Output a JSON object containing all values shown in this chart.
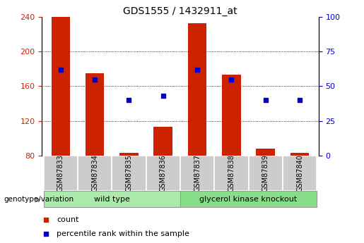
{
  "title": "GDS1555 / 1432911_at",
  "samples": [
    "GSM87833",
    "GSM87834",
    "GSM87835",
    "GSM87836",
    "GSM87837",
    "GSM87838",
    "GSM87839",
    "GSM87840"
  ],
  "counts": [
    240,
    175,
    83,
    113,
    233,
    173,
    88,
    83
  ],
  "percentiles": [
    62,
    55,
    40,
    43,
    62,
    55,
    40,
    40
  ],
  "ymin": 80,
  "ymax": 240,
  "yticks_left": [
    80,
    120,
    160,
    200,
    240
  ],
  "yticks_right": [
    0,
    25,
    50,
    75,
    100
  ],
  "bar_color": "#CC2200",
  "dot_color": "#0000CC",
  "bar_width": 0.55,
  "tick_label_color_left": "#CC2200",
  "tick_label_color_right": "#0000CC",
  "legend_count_label": "count",
  "legend_pct_label": "percentile rank within the sample",
  "genotype_label": "genotype/variation",
  "group1_label": "wild type",
  "group2_label": "glycerol kinase knockout",
  "group1_color": "#aaeaaa",
  "group2_color": "#88dd88",
  "xlabel_bg": "#cccccc"
}
